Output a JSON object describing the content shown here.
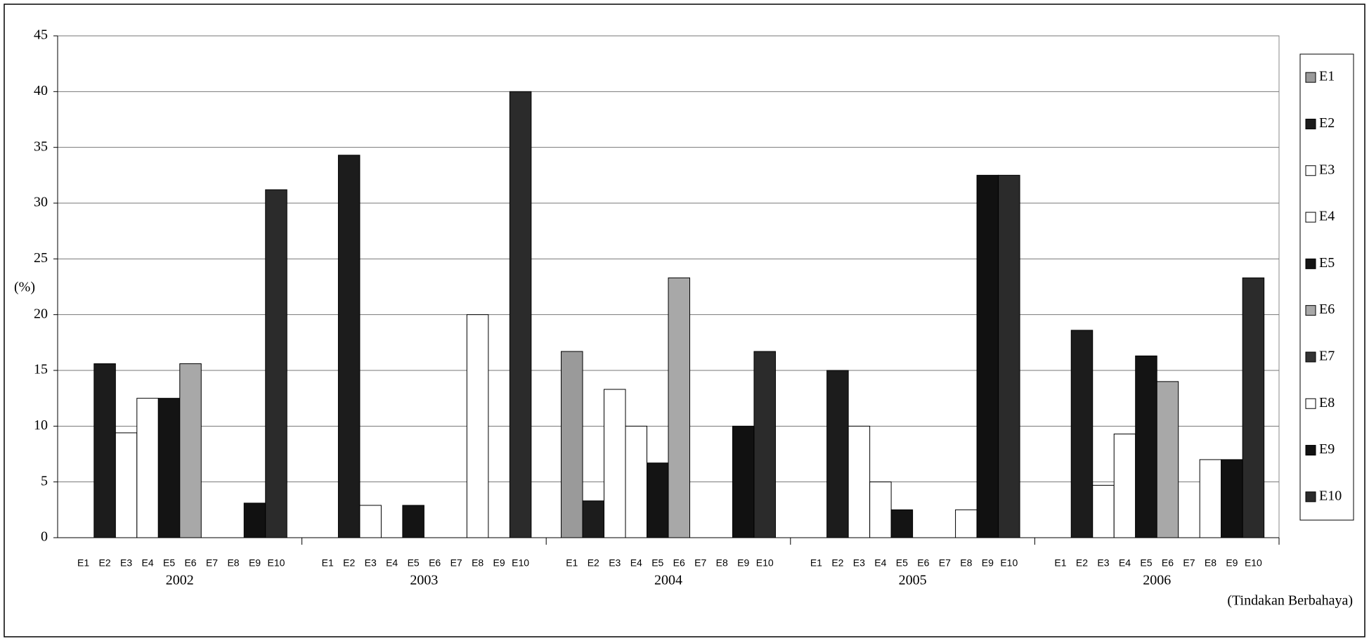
{
  "chart_data": {
    "type": "bar",
    "categories": [
      "2002",
      "2003",
      "2004",
      "2005",
      "2006"
    ],
    "series": [
      {
        "name": "E1",
        "color": "#9a9a9a",
        "values": [
          0,
          0,
          16.7,
          0,
          0
        ]
      },
      {
        "name": "E2",
        "color": "#1c1c1c",
        "values": [
          15.6,
          34.3,
          3.3,
          15,
          18.6
        ]
      },
      {
        "name": "E3",
        "color": "#ffffff",
        "values": [
          9.4,
          2.9,
          13.3,
          10,
          4.7
        ]
      },
      {
        "name": "E4",
        "color": "#ffffff",
        "values": [
          12.5,
          0,
          10,
          5,
          9.3
        ]
      },
      {
        "name": "E5",
        "color": "#141414",
        "values": [
          12.5,
          2.9,
          6.7,
          2.5,
          16.3
        ]
      },
      {
        "name": "E6",
        "color": "#a8a8a8",
        "values": [
          15.6,
          0,
          23.3,
          0,
          14
        ]
      },
      {
        "name": "E7",
        "color": "#333333",
        "values": [
          0,
          0,
          0,
          0,
          0
        ]
      },
      {
        "name": "E8",
        "color": "#ffffff",
        "values": [
          0,
          20,
          0,
          2.5,
          7
        ]
      },
      {
        "name": "E9",
        "color": "#111111",
        "values": [
          3.1,
          0,
          10,
          32.5,
          7
        ]
      },
      {
        "name": "E10",
        "color": "#2b2b2b",
        "values": [
          31.2,
          40,
          16.7,
          32.5,
          23.3
        ]
      }
    ],
    "y_label": "(%)",
    "x_label": "(Tindakan Berbahaya)",
    "ylim": [
      0,
      45
    ],
    "yticks": [
      0,
      5,
      10,
      15,
      20,
      25,
      30,
      35,
      40,
      45
    ],
    "grid": true,
    "legend": "right"
  }
}
